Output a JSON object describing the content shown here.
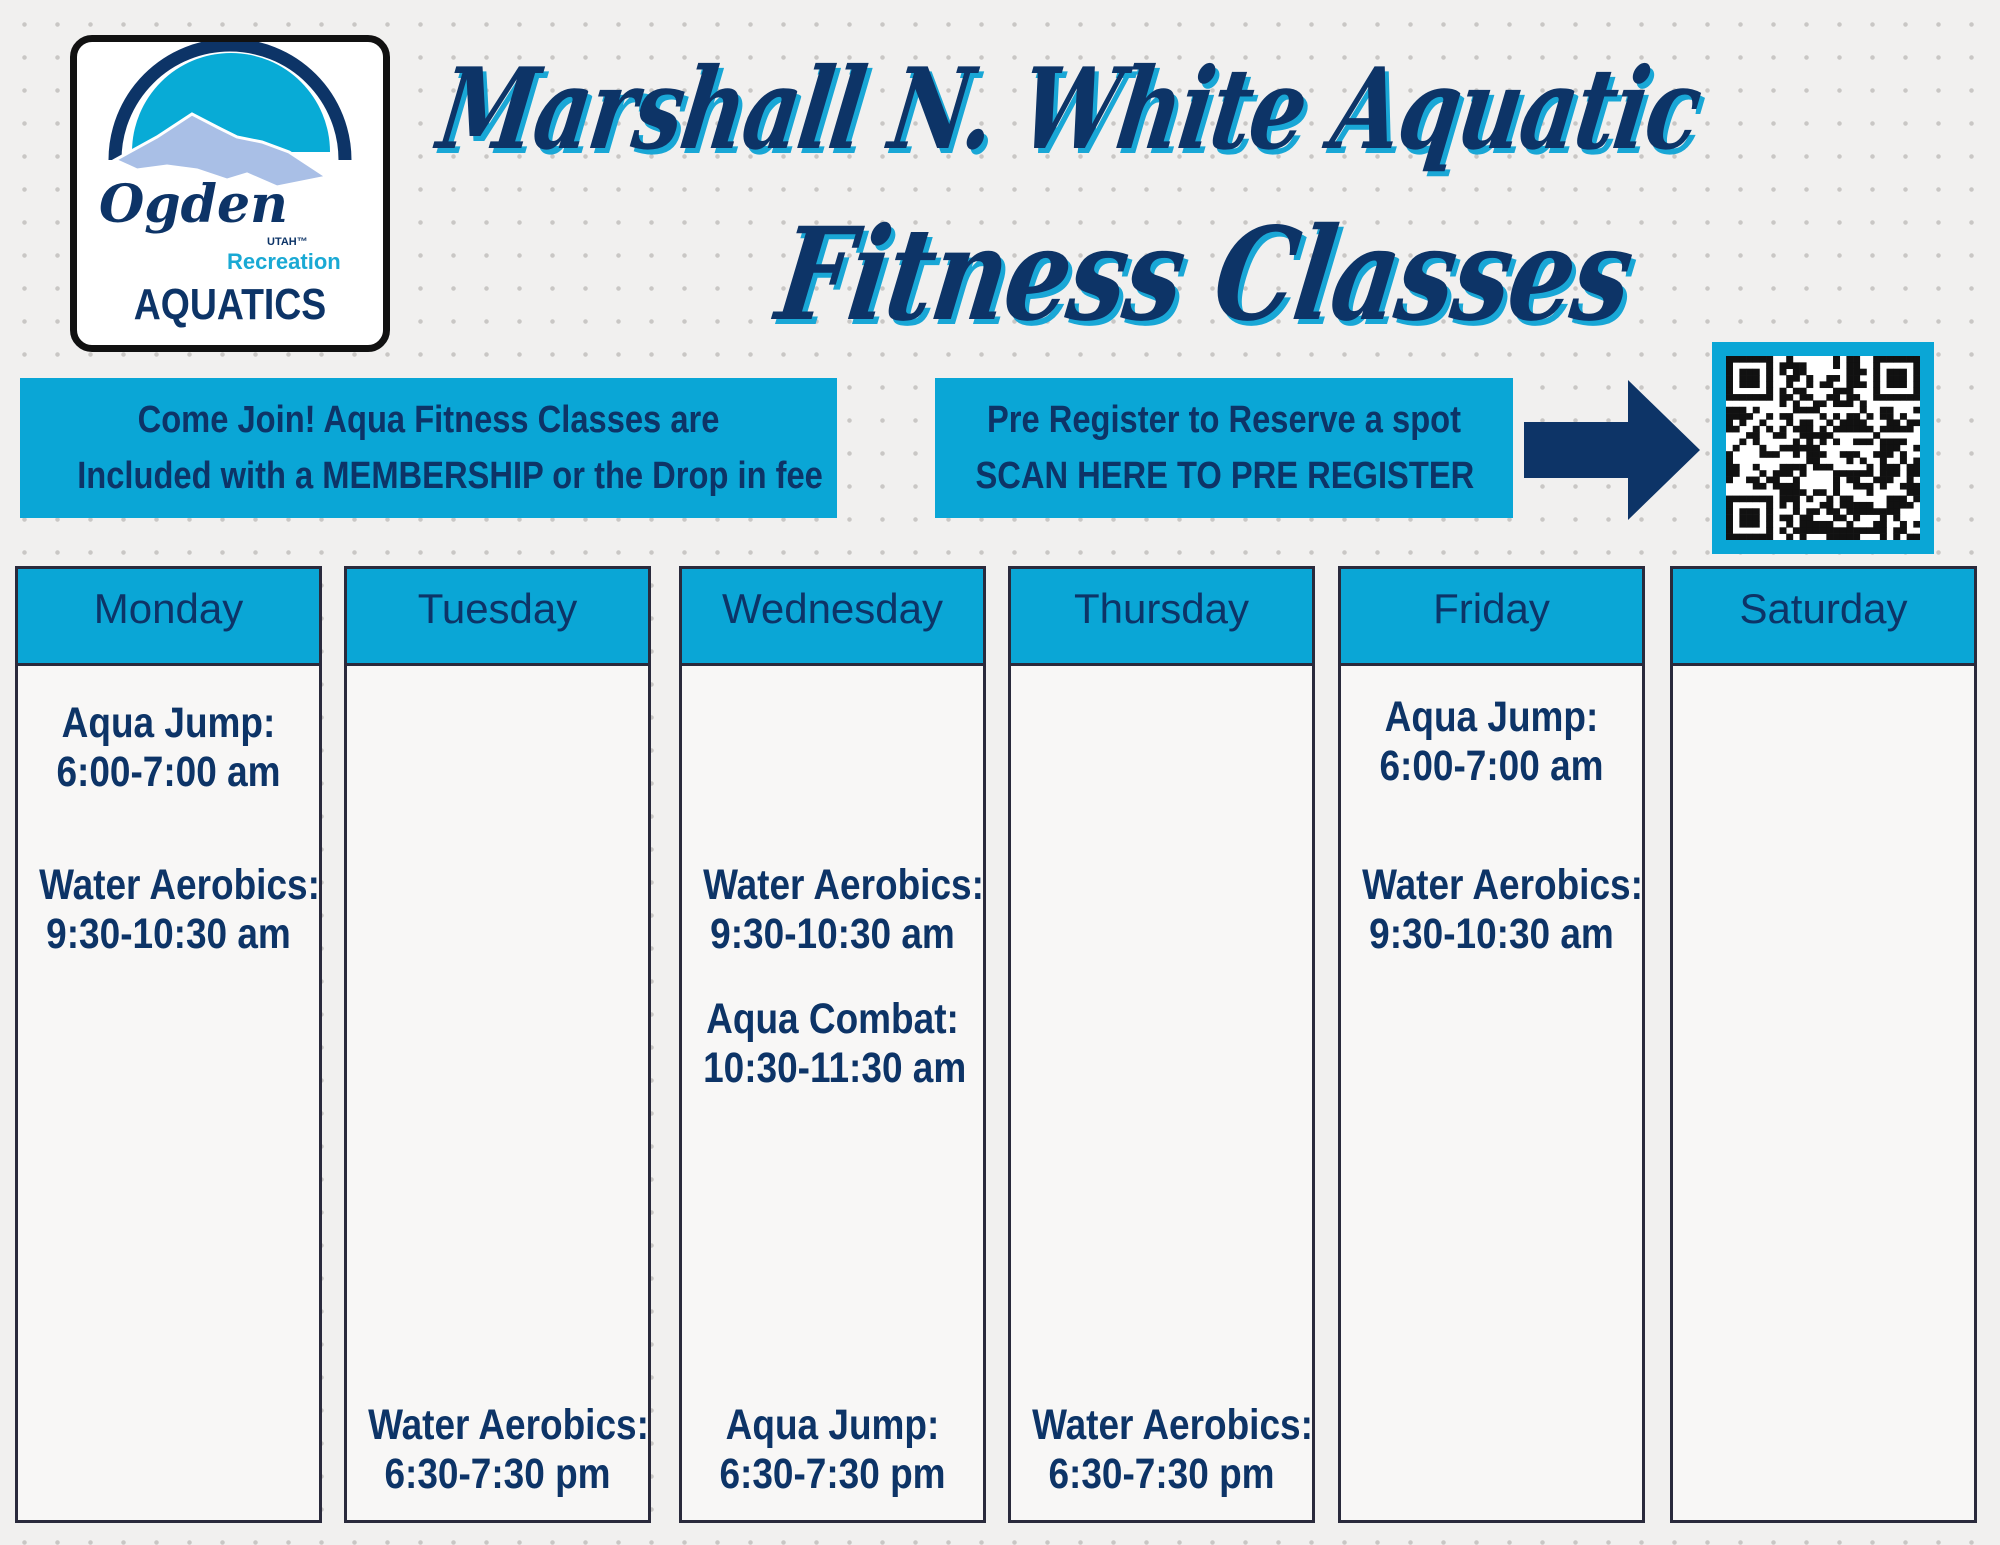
{
  "logo": {
    "brand": "Ogden",
    "state": "UTAH™",
    "division": "Recreation",
    "name": "AQUATICS"
  },
  "title": {
    "line1": "Marshall N. White Aquatic",
    "line2": "Fitness Classes"
  },
  "banner_membership": {
    "line1": "Come Join! Aqua Fitness Classes are",
    "line2": "Included with a MEMBERSHIP or the Drop in fee"
  },
  "banner_register": {
    "line1": "Pre Register to Reserve a spot",
    "line2": "SCAN HERE TO PRE REGISTER"
  },
  "icons": {
    "arrow": "arrow-right-icon",
    "qr": "qr-code"
  },
  "colors": {
    "navy": "#0d3467",
    "cyan": "#0aa6d6"
  },
  "days": [
    {
      "name": "Monday",
      "classes": [
        {
          "name": "Aqua Jump:",
          "time": "6:00-7:00 am"
        },
        {
          "name": "Water Aerobics:",
          "time": "9:30-10:30 am"
        }
      ]
    },
    {
      "name": "Tuesday",
      "classes": [
        {
          "name": "Water Aerobics:",
          "time": "6:30-7:30 pm"
        }
      ]
    },
    {
      "name": "Wednesday",
      "classes": [
        {
          "name": "Water Aerobics:",
          "time": "9:30-10:30 am"
        },
        {
          "name": "Aqua Combat:",
          "time": "10:30-11:30 am"
        },
        {
          "name": "Aqua Jump:",
          "time": "6:30-7:30 pm"
        }
      ]
    },
    {
      "name": "Thursday",
      "classes": [
        {
          "name": "Water Aerobics:",
          "time": "6:30-7:30 pm"
        }
      ]
    },
    {
      "name": "Friday",
      "classes": [
        {
          "name": "Aqua Jump:",
          "time": "6:00-7:00 am"
        },
        {
          "name": "Water Aerobics:",
          "time": "9:30-10:30 am"
        }
      ]
    },
    {
      "name": "Saturday",
      "classes": []
    }
  ]
}
